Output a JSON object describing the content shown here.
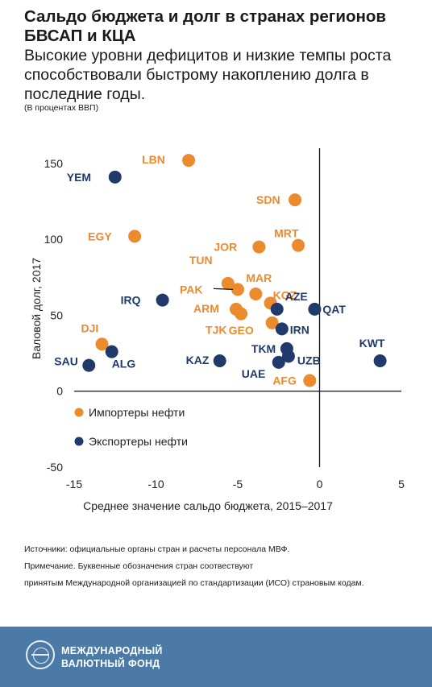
{
  "header": {
    "title": "Сальдо бюджета и долг в странах регионов БВСАП и КЦА",
    "subtitle": "Высокие уровни дефицитов и низкие темпы роста способствовали быстрому накоплению долга в последние годы.",
    "unit_note": "(В процентах ВВП)"
  },
  "chart_data": {
    "type": "scatter",
    "xlabel": "Среднее значение сальдо бюджета, 2015–2017",
    "ylabel": "Валовой долг, 2017",
    "xlim": [
      -15,
      5
    ],
    "ylim": [
      -50,
      160
    ],
    "x_ticks": [
      -15,
      -10,
      -5,
      0,
      5
    ],
    "y_ticks": [
      -50,
      0,
      50,
      100,
      150
    ],
    "x_tick_labels": [
      "-15",
      "-10",
      "-5",
      "0",
      "5"
    ],
    "y_tick_labels": [
      "-50",
      "0",
      "50",
      "100",
      "150"
    ],
    "grid": false,
    "zero_lines": true,
    "legend_position": "bottom-left",
    "series": [
      {
        "name": "Импортеры нефти",
        "color": "#ec8a2e",
        "points": [
          {
            "label": "LBN",
            "x": -8.0,
            "y": 152
          },
          {
            "label": "SDN",
            "x": -1.5,
            "y": 126
          },
          {
            "label": "EGY",
            "x": -11.3,
            "y": 102
          },
          {
            "label": "JOR",
            "x": -3.7,
            "y": 95
          },
          {
            "label": "MRT",
            "x": -1.3,
            "y": 96
          },
          {
            "label": "TUN",
            "x": -5.6,
            "y": 71
          },
          {
            "label": "PAK",
            "x": -5.0,
            "y": 67
          },
          {
            "label": "MAR",
            "x": -3.9,
            "y": 64
          },
          {
            "label": "KGZ",
            "x": -3.0,
            "y": 58
          },
          {
            "label": "ARM",
            "x": -5.1,
            "y": 54
          },
          {
            "label": "TJK",
            "x": -4.8,
            "y": 51
          },
          {
            "label": "GEO",
            "x": -2.9,
            "y": 45
          },
          {
            "label": "DJI",
            "x": -13.3,
            "y": 31
          },
          {
            "label": "AFG",
            "x": -0.6,
            "y": 7
          }
        ]
      },
      {
        "name": "Экспортеры нефти",
        "color": "#1f3a6b",
        "points": [
          {
            "label": "YEM",
            "x": -12.5,
            "y": 141
          },
          {
            "label": "IRQ",
            "x": -9.6,
            "y": 60
          },
          {
            "label": "AZE",
            "x": -2.6,
            "y": 54
          },
          {
            "label": "QAT",
            "x": -0.3,
            "y": 54
          },
          {
            "label": "IRN",
            "x": -2.3,
            "y": 41
          },
          {
            "label": "TKM",
            "x": -2.0,
            "y": 28
          },
          {
            "label": "UZB",
            "x": -1.9,
            "y": 23
          },
          {
            "label": "UAE",
            "x": -2.5,
            "y": 19
          },
          {
            "label": "KAZ",
            "x": -6.1,
            "y": 20
          },
          {
            "label": "KWT",
            "x": 3.7,
            "y": 20
          },
          {
            "label": "SAU",
            "x": -14.1,
            "y": 17
          },
          {
            "label": "ALG",
            "x": -12.7,
            "y": 26
          }
        ]
      }
    ]
  },
  "notes": {
    "sources": "Источники: официальные органы стран и расчеты персонала МВФ.",
    "note_line1": "Примечание. Буквенные обозначения стран соотвествуют",
    "note_line2": "принятым Международной организацией по стандартизации (ИСО) страновым кодам."
  },
  "footer": {
    "org_line1": "МЕЖДУНАРОДНЫЙ",
    "org_line2": "ВАЛЮТНЫЙ ФОНД",
    "logo_icon": "imf-seal-icon",
    "background": "#4b7aa6"
  }
}
